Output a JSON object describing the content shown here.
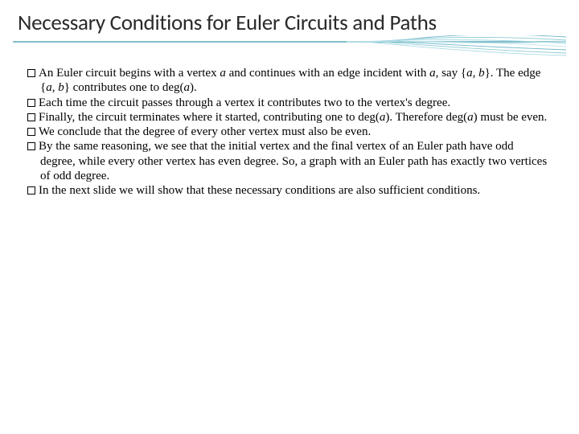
{
  "slide": {
    "title": "Necessary Conditions for Euler Circuits and Paths",
    "title_fontsize": 27,
    "title_color": "#2a2a2a",
    "background_color": "#ffffff",
    "underline": {
      "curve_colors": [
        "#6fb8c9",
        "#8cc9d6",
        "#a8d9e2",
        "#c3e6ec"
      ],
      "baseline_color": "#5aa9bb",
      "stroke_width": 0.9
    },
    "bullets": [
      {
        "runs": [
          {
            "t": "An Euler circuit begins with a vertex "
          },
          {
            "t": "a",
            "i": true
          },
          {
            "t": " and continues with an edge incident with "
          },
          {
            "t": "a",
            "i": true
          },
          {
            "t": ", say {"
          },
          {
            "t": "a",
            "i": true
          },
          {
            "t": ", "
          },
          {
            "t": "b",
            "i": true
          },
          {
            "t": "}. The edge {"
          },
          {
            "t": "a",
            "i": true
          },
          {
            "t": ", "
          },
          {
            "t": "b",
            "i": true
          },
          {
            "t": "} contributes one to deg("
          },
          {
            "t": "a",
            "i": true
          },
          {
            "t": ")."
          }
        ]
      },
      {
        "runs": [
          {
            "t": "Each time the circuit passes through a vertex it contributes two to the vertex's degree."
          }
        ]
      },
      {
        "runs": [
          {
            "t": "Finally, the circuit terminates where it started, contributing one to deg("
          },
          {
            "t": "a",
            "i": true
          },
          {
            "t": "). Therefore deg("
          },
          {
            "t": "a",
            "i": true
          },
          {
            "t": ") must be even."
          }
        ]
      },
      {
        "runs": [
          {
            "t": "We conclude that the degree of every other vertex must also be even."
          }
        ]
      },
      {
        "runs": [
          {
            "t": "By the same reasoning, we see that the initial vertex and the final vertex of an Euler path have odd degree, while every other vertex has even degree.  So, a graph with an Euler path has exactly two vertices of odd degree."
          }
        ]
      },
      {
        "runs": [
          {
            "t": "In the next slide we will show that these necessary conditions are also sufficient conditions."
          }
        ]
      }
    ],
    "body_fontsize": 15,
    "body_color": "#000000"
  }
}
